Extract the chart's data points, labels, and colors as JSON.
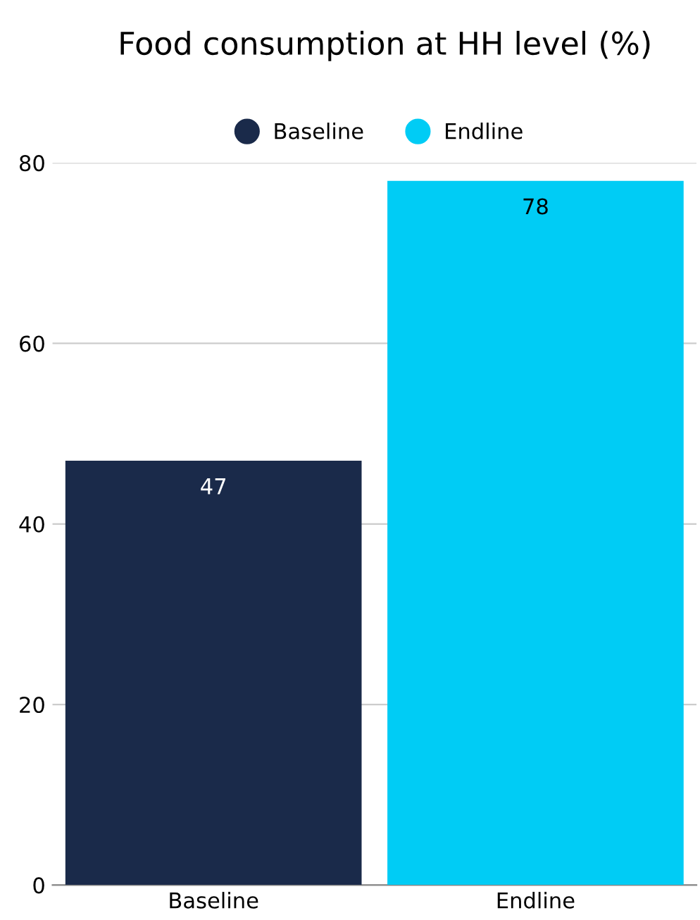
{
  "chart_data": {
    "type": "bar",
    "title": "Food consumption at HH level (%)",
    "categories": [
      "Baseline",
      "Endline"
    ],
    "series": [
      {
        "name": "Baseline",
        "color": "#1a2a4a",
        "values": [
          47,
          null
        ]
      },
      {
        "name": "Endline",
        "color": "#00ccf5",
        "values": [
          null,
          78
        ]
      }
    ],
    "ylim": [
      0,
      80
    ],
    "yticks": [
      0,
      20,
      40,
      60,
      80
    ],
    "grid": "y",
    "legend": "top",
    "data_labels": true
  }
}
